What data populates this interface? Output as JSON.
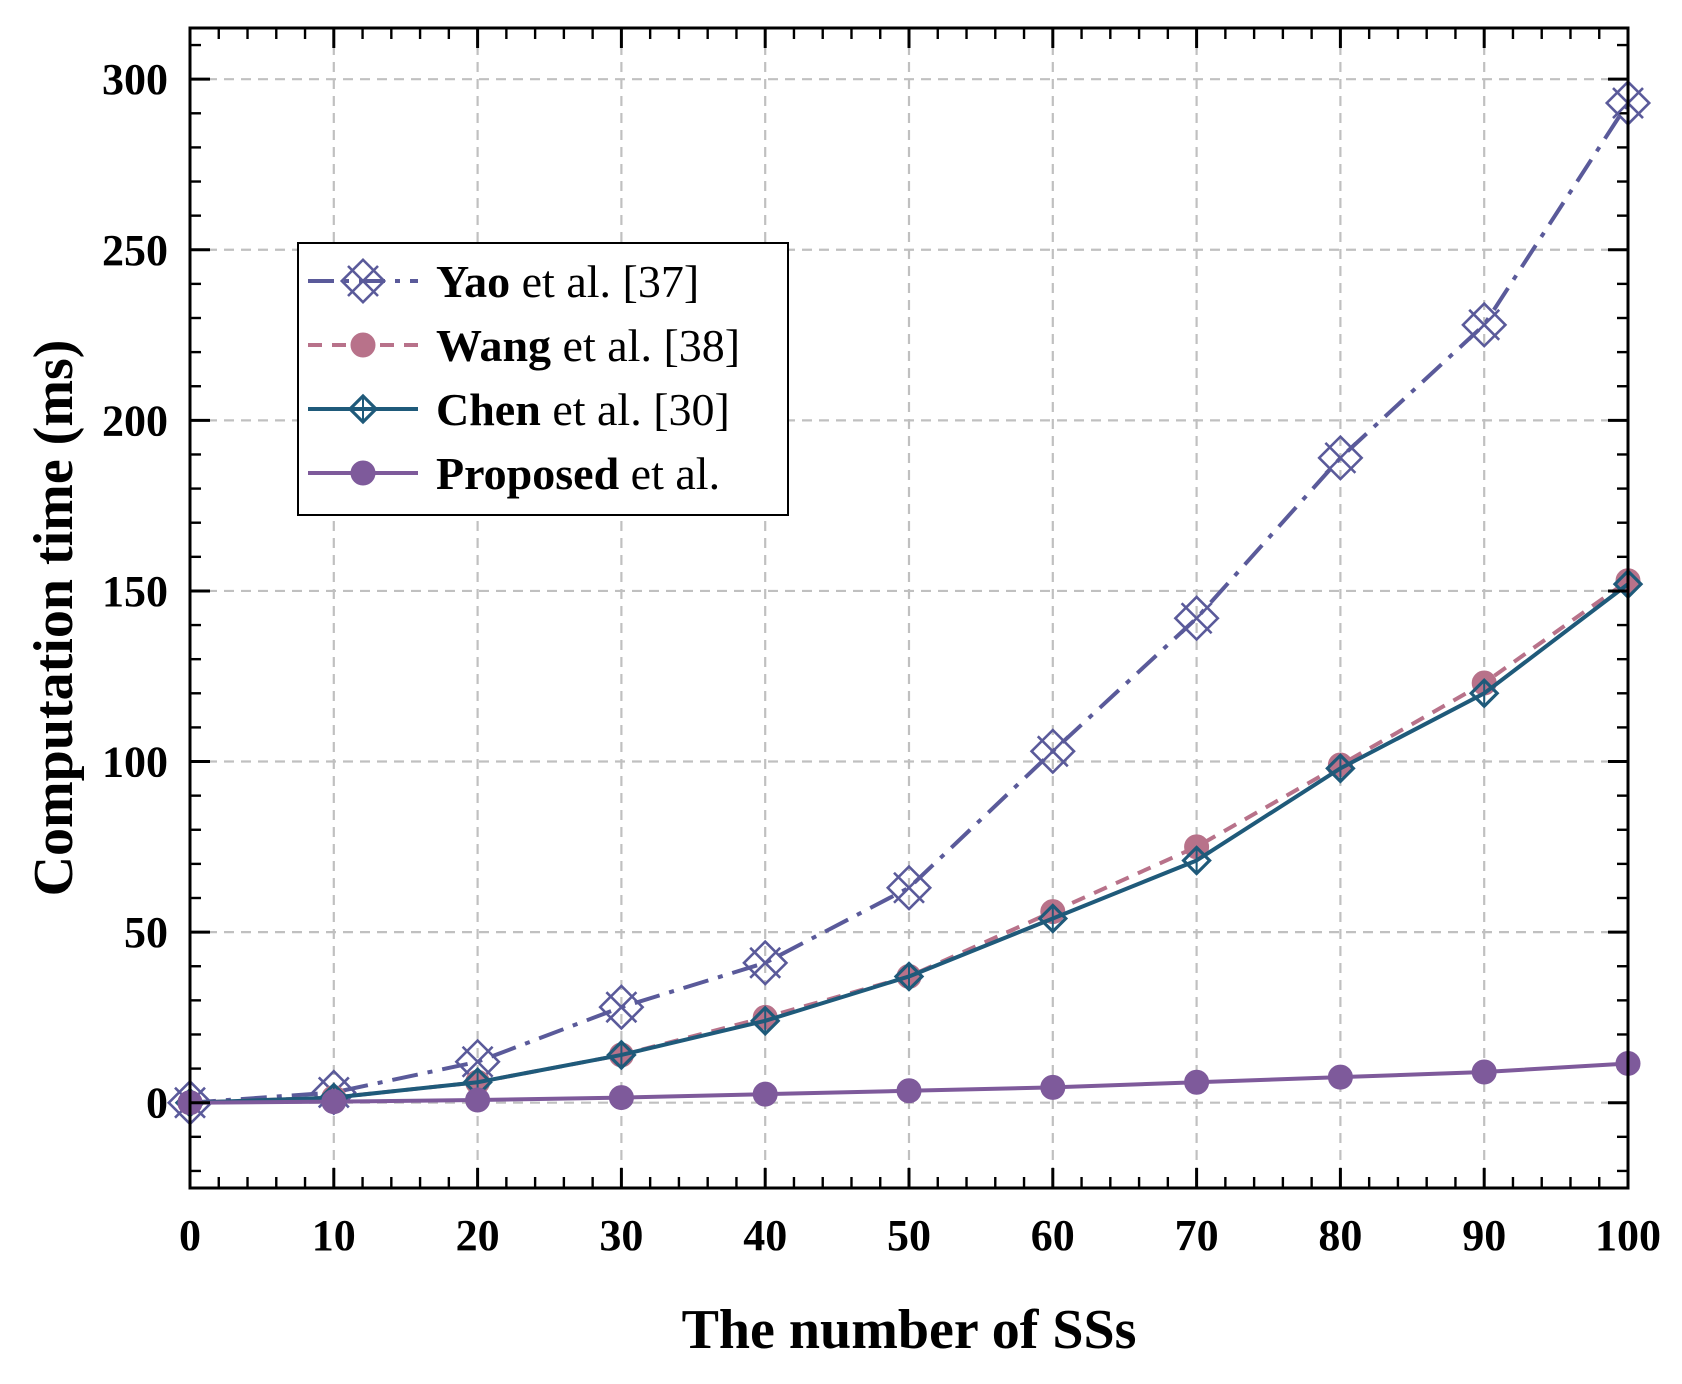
{
  "chart_data": {
    "type": "line",
    "title": "",
    "xlabel": "The number of SSs",
    "ylabel": "Computation time (ms)",
    "xlim": [
      0,
      100
    ],
    "ylim": [
      -25,
      315
    ],
    "x_ticks": [
      0,
      10,
      20,
      30,
      40,
      50,
      60,
      70,
      80,
      90,
      100
    ],
    "y_ticks": [
      0,
      50,
      100,
      150,
      200,
      250,
      300
    ],
    "x_tick_labels": [
      "0",
      "10",
      "20",
      "30",
      "40",
      "50",
      "60",
      "70",
      "80",
      "90",
      "100"
    ],
    "y_tick_labels": [
      "0",
      "50",
      "100",
      "150",
      "200",
      "250",
      "300"
    ],
    "grid": true,
    "legend_position": "upper-left",
    "x": [
      0,
      10,
      20,
      30,
      40,
      50,
      60,
      70,
      80,
      90,
      100
    ],
    "series": [
      {
        "name": "Yao et al. [37]",
        "label_bold": "Yao",
        "label_rest": " et al. [37]",
        "color": "#5a5a9a",
        "line_style": "dash-dot",
        "marker": "x-box",
        "values": [
          0,
          3,
          12,
          28,
          41,
          63,
          103,
          142,
          189,
          228,
          293
        ]
      },
      {
        "name": "Wang et al. [38]",
        "label_bold": "Wang",
        "label_rest": " et al. [38]",
        "color": "#b8728a",
        "line_style": "dashed",
        "marker": "circle",
        "values": [
          0,
          1.5,
          6,
          14,
          25,
          37,
          56,
          75,
          99,
          123,
          153
        ]
      },
      {
        "name": "Chen et al. [30]",
        "label_bold": "Chen",
        "label_rest": " et al. [30]",
        "color": "#1f5a7a",
        "line_style": "solid",
        "marker": "diamond",
        "values": [
          0,
          1.5,
          6,
          14,
          24,
          37,
          54,
          71,
          98,
          120,
          152
        ]
      },
      {
        "name": "Proposed et al.",
        "label_bold": "Proposed",
        "label_rest": " et al.",
        "color": "#7e5a9b",
        "line_style": "solid",
        "marker": "filled-circle",
        "values": [
          0,
          0.3,
          0.8,
          1.5,
          2.5,
          3.5,
          4.5,
          6,
          7.5,
          9,
          11.5
        ]
      }
    ]
  }
}
